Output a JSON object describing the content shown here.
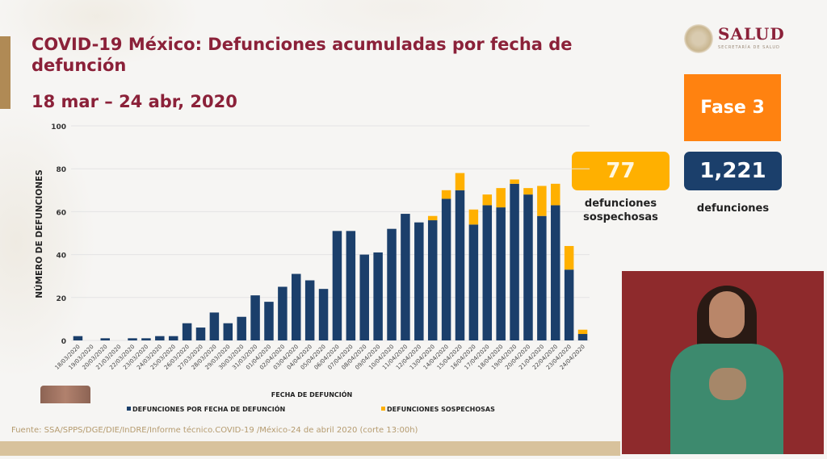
{
  "header": {
    "title": "COVID-19 México: Defunciones acumuladas por fecha de defunción",
    "subtitle": "18 mar – 24 abr, 2020"
  },
  "logo": {
    "icon": "national-emblem-icon",
    "word": "SALUD",
    "sub": "SECRETARÍA DE SALUD"
  },
  "phase": {
    "label": "Fase 3",
    "color": "#ff8210"
  },
  "stats": {
    "suspected": {
      "value": "77",
      "label_line1": "defunciones",
      "label_line2": "sospechosas",
      "color": "#ffb000"
    },
    "confirmed": {
      "value": "1,221",
      "label": "defunciones",
      "color": "#1b3f6b"
    }
  },
  "source": "Fuente: SSA/SPPS/DGE/DIE/InDRE/Informe técnico.COVID-19 /México-24 de abril 2020 (corte 13:00h)",
  "video": {
    "description": "Intérprete de lengua de señas"
  },
  "chart_data": {
    "type": "bar",
    "stacked": true,
    "xlabel": "FECHA DE DEFUNCIÓN",
    "ylabel": "NÚMERO DE DEFUNCIONES",
    "ylim": [
      0,
      100
    ],
    "yticks": [
      0,
      20,
      40,
      60,
      80,
      100
    ],
    "grid": true,
    "legend_position": "bottom",
    "categories": [
      "18/03/2020",
      "19/03/2020",
      "20/03/2020",
      "21/03/2020",
      "22/03/2020",
      "23/03/2020",
      "24/03/2020",
      "25/03/2020",
      "26/03/2020",
      "27/03/2020",
      "28/03/2020",
      "29/03/2020",
      "30/03/2020",
      "31/03/2020",
      "01/04/2020",
      "02/04/2020",
      "03/04/2020",
      "04/04/2020",
      "05/04/2020",
      "06/04/2020",
      "07/04/2020",
      "08/04/2020",
      "09/04/2020",
      "10/04/2020",
      "11/04/2020",
      "12/04/2020",
      "13/04/2020",
      "14/04/2020",
      "15/04/2020",
      "16/04/2020",
      "17/04/2020",
      "18/04/2020",
      "19/04/2020",
      "20/04/2020",
      "21/04/2020",
      "22/04/2020",
      "23/04/2020",
      "24/04/2020"
    ],
    "series": [
      {
        "name": "DEFUNCIONES POR FECHA DE DEFUNCIÓN",
        "color": "#1b3f6b",
        "values": [
          2,
          0,
          1,
          0,
          1,
          1,
          2,
          2,
          8,
          6,
          13,
          8,
          11,
          21,
          18,
          25,
          31,
          28,
          24,
          51,
          51,
          40,
          41,
          52,
          59,
          55,
          56,
          66,
          70,
          54,
          63,
          62,
          73,
          68,
          58,
          63,
          33,
          3
        ]
      },
      {
        "name": "DEFUNCIONES SOSPECHOSAS",
        "color": "#ffb000",
        "values": [
          0,
          0,
          0,
          0,
          0,
          0,
          0,
          0,
          0,
          0,
          0,
          0,
          0,
          0,
          0,
          0,
          0,
          0,
          0,
          0,
          0,
          0,
          0,
          0,
          0,
          0,
          2,
          4,
          8,
          7,
          5,
          9,
          2,
          3,
          14,
          10,
          11,
          2
        ]
      }
    ]
  }
}
